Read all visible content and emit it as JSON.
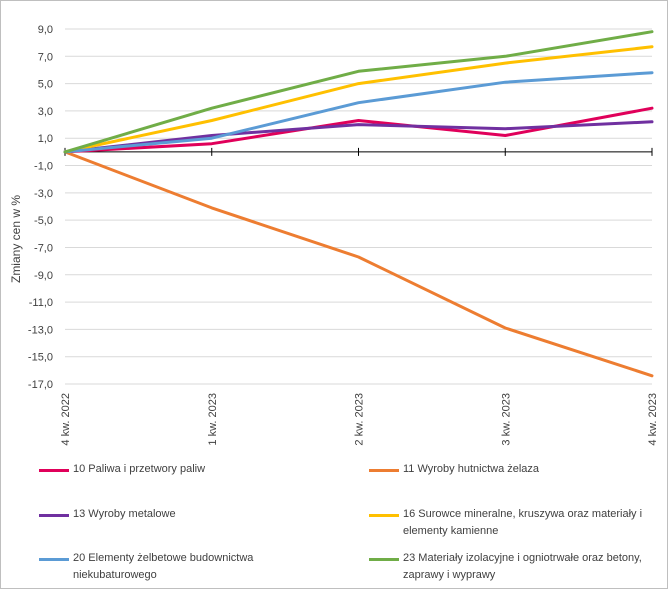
{
  "chart_data": {
    "type": "line",
    "ylabel": "Zmiany cen w %",
    "xlabel": "",
    "categories": [
      "4 kw. 2022",
      "1 kw. 2023",
      "2 kw. 2023",
      "3 kw. 2023",
      "4 kw. 2023"
    ],
    "ylim": [
      -17,
      9
    ],
    "yticks": [
      "9,0",
      "7,0",
      "5,0",
      "3,0",
      "1,0",
      "-1,0",
      "-3,0",
      "-5,0",
      "-7,0",
      "-9,0",
      "-11,0",
      "-13,0",
      "-15,0",
      "-17,0"
    ],
    "grid": true,
    "legend_position": "bottom",
    "series": [
      {
        "name": "10 Paliwa i przetwory paliw",
        "color": "#e0005a",
        "values": [
          0,
          0.6,
          2.3,
          1.2,
          3.2
        ]
      },
      {
        "name": "11 Wyroby hutnictwa żelaza",
        "color": "#ed7d31",
        "values": [
          0,
          -4.1,
          -7.7,
          -12.9,
          -16.4
        ]
      },
      {
        "name": "13 Wyroby metalowe",
        "color": "#7030a0",
        "values": [
          0,
          1.2,
          2.0,
          1.7,
          2.2
        ]
      },
      {
        "name": "16 Surowce mineralne, kruszywa oraz materiały i elementy kamienne",
        "color": "#ffc000",
        "values": [
          0,
          2.3,
          5.0,
          6.5,
          7.7
        ]
      },
      {
        "name": "20 Elementy żelbetowe budownictwa niekubaturowego",
        "color": "#5b9bd5",
        "values": [
          0,
          1.0,
          3.6,
          5.1,
          5.8
        ]
      },
      {
        "name": "23 Materiały izolacyjne i ogniotrwałe oraz betony, zaprawy i wyprawy",
        "color": "#70ad47",
        "values": [
          0,
          3.2,
          5.9,
          7.0,
          8.8
        ]
      }
    ]
  }
}
